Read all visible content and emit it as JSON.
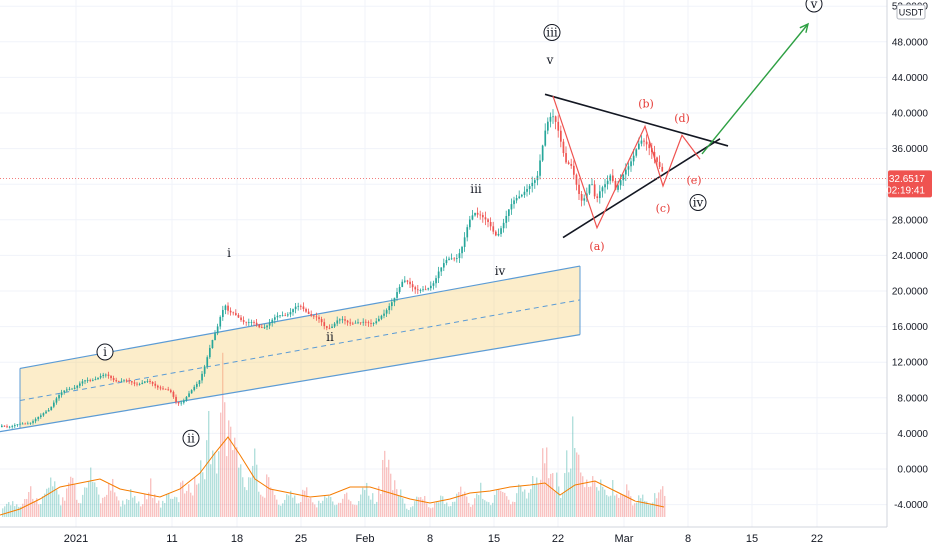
{
  "chart_data": {
    "type": "candlestick",
    "currency": "USDT",
    "y_axis_ticks": [
      "52.0000",
      "48.0000",
      "44.0000",
      "40.0000",
      "36.0000",
      "32.0000",
      "28.0000",
      "24.0000",
      "20.0000",
      "16.0000",
      "12.0000",
      "8.0000",
      "4.0000",
      "0.0000",
      "-4.0000"
    ],
    "y_tick_values": [
      52,
      48,
      44,
      40,
      36,
      32,
      28,
      24,
      20,
      16,
      12,
      8,
      4,
      0,
      -4
    ],
    "ylim": [
      -6.5,
      53
    ],
    "x_axis_ticks": [
      "2021",
      "11",
      "18",
      "25",
      "Feb",
      "8",
      "15",
      "22",
      "Mar",
      "8",
      "15",
      "22"
    ],
    "last_price": "32.6517",
    "last_price_value": 32.6517,
    "countdown": "02:19:41",
    "price_path": [
      [
        0,
        4.7
      ],
      [
        10,
        4.9
      ],
      [
        20,
        5.1
      ],
      [
        30,
        5.4
      ],
      [
        40,
        5.8
      ],
      [
        48,
        6.6
      ],
      [
        55,
        7.8
      ],
      [
        62,
        8.6
      ],
      [
        68,
        9.2
      ],
      [
        75,
        9.5
      ],
      [
        82,
        9.8
      ],
      [
        90,
        10.0
      ],
      [
        98,
        10.2
      ],
      [
        106,
        10.3
      ],
      [
        114,
        10.1
      ],
      [
        122,
        10.0
      ],
      [
        130,
        9.9
      ],
      [
        138,
        9.7
      ],
      [
        146,
        9.6
      ],
      [
        154,
        9.3
      ],
      [
        162,
        9.0
      ],
      [
        170,
        8.6
      ],
      [
        176,
        7.6
      ],
      [
        182,
        7.8
      ],
      [
        190,
        8.6
      ],
      [
        198,
        9.8
      ],
      [
        204,
        11.5
      ],
      [
        210,
        13.6
      ],
      [
        216,
        15.6
      ],
      [
        220,
        17.6
      ],
      [
        224,
        18.9
      ],
      [
        228,
        17.8
      ],
      [
        234,
        17.4
      ],
      [
        240,
        17.0
      ],
      [
        246,
        16.6
      ],
      [
        252,
        16.1
      ],
      [
        258,
        15.6
      ],
      [
        264,
        16.0
      ],
      [
        270,
        16.6
      ],
      [
        276,
        17.1
      ],
      [
        282,
        17.6
      ],
      [
        288,
        17.9
      ],
      [
        294,
        18.1
      ],
      [
        300,
        18.0
      ],
      [
        306,
        17.6
      ],
      [
        312,
        17.0
      ],
      [
        318,
        16.5
      ],
      [
        324,
        16.0
      ],
      [
        330,
        16.3
      ],
      [
        336,
        16.8
      ],
      [
        342,
        16.8
      ],
      [
        348,
        16.6
      ],
      [
        354,
        16.4
      ],
      [
        360,
        16.0
      ],
      [
        366,
        16.2
      ],
      [
        372,
        16.5
      ],
      [
        378,
        16.9
      ],
      [
        384,
        17.5
      ],
      [
        390,
        19.0
      ],
      [
        396,
        20.2
      ],
      [
        402,
        20.9
      ],
      [
        408,
        20.6
      ],
      [
        414,
        20.2
      ],
      [
        420,
        19.9
      ],
      [
        426,
        19.8
      ],
      [
        432,
        21.0
      ],
      [
        438,
        22.8
      ],
      [
        444,
        23.4
      ],
      [
        450,
        23.6
      ],
      [
        456,
        23.9
      ],
      [
        462,
        25.0
      ],
      [
        468,
        27.1
      ],
      [
        474,
        28.6
      ],
      [
        480,
        28.9
      ],
      [
        486,
        28.0
      ],
      [
        492,
        26.8
      ],
      [
        496,
        26.5
      ],
      [
        500,
        27.6
      ],
      [
        506,
        28.6
      ],
      [
        512,
        29.4
      ],
      [
        518,
        30.4
      ],
      [
        524,
        31.2
      ],
      [
        530,
        31.5
      ],
      [
        536,
        32.5
      ],
      [
        540,
        35.8
      ],
      [
        544,
        38.8
      ],
      [
        548,
        40.0
      ],
      [
        552,
        39.6
      ],
      [
        556,
        38.4
      ],
      [
        560,
        36.8
      ],
      [
        565,
        34.6
      ],
      [
        570,
        33.8
      ],
      [
        575,
        31.4
      ],
      [
        580,
        29.8
      ],
      [
        585,
        31.0
      ],
      [
        590,
        33.0
      ],
      [
        595,
        30.0
      ],
      [
        600,
        31.6
      ],
      [
        605,
        32.7
      ],
      [
        610,
        33.5
      ],
      [
        615,
        30.8
      ],
      [
        620,
        31.8
      ],
      [
        625,
        33.4
      ],
      [
        630,
        34.6
      ],
      [
        635,
        35.6
      ],
      [
        640,
        36.6
      ],
      [
        645,
        37.0
      ],
      [
        650,
        36.8
      ],
      [
        655,
        35.2
      ],
      [
        660,
        33.4
      ],
      [
        664,
        32.6
      ]
    ],
    "channel": {
      "lower": [
        [
          0,
          4.2
        ],
        [
          580,
          15.1
        ]
      ],
      "upper": [
        [
          20,
          11.3
        ],
        [
          580,
          22.8
        ]
      ],
      "mid": [
        [
          20,
          7.7
        ],
        [
          580,
          19.0
        ]
      ]
    },
    "triangle": {
      "upper": [
        [
          545,
          42.1
        ],
        [
          728,
          36.3
        ]
      ],
      "lower": [
        [
          563,
          26.0
        ],
        [
          720,
          37.1
        ]
      ]
    },
    "triangle_waves": [
      [
        553,
        41.9
      ],
      [
        597,
        27.1
      ],
      [
        645,
        38.5
      ],
      [
        663,
        31.8
      ],
      [
        682,
        37.5
      ],
      [
        700,
        34.8
      ]
    ],
    "projection": [
      [
        702,
        35.4
      ],
      [
        808,
        50.0
      ]
    ],
    "labels": [
      {
        "text": "i",
        "circled": true,
        "color": "#131722",
        "x": 105,
        "y": 12.7
      },
      {
        "text": "ii",
        "circled": true,
        "color": "#131722",
        "x": 191,
        "y": 3.0
      },
      {
        "text": "iii",
        "circled": true,
        "color": "#131722",
        "x": 552,
        "y": 48.6
      },
      {
        "text": "iv",
        "circled": true,
        "color": "#131722",
        "x": 698,
        "y": 29.5
      },
      {
        "text": "v",
        "circled": true,
        "color": "#131722",
        "x": 814,
        "y": 51.8
      },
      {
        "text": "i",
        "circled": false,
        "color": "#131722",
        "x": 229,
        "y": 23.8
      },
      {
        "text": "ii",
        "circled": false,
        "color": "#131722",
        "x": 330,
        "y": 14.4
      },
      {
        "text": "iii",
        "circled": false,
        "color": "#131722",
        "x": 476,
        "y": 31.0
      },
      {
        "text": "iv",
        "circled": false,
        "color": "#131722",
        "x": 500,
        "y": 21.8
      },
      {
        "text": "v",
        "circled": false,
        "color": "#131722",
        "x": 550,
        "y": 45.5
      },
      {
        "text": "(a)",
        "circled": false,
        "color": "#e53935",
        "x": 597,
        "y": 24.6
      },
      {
        "text": "(b)",
        "circled": false,
        "color": "#e53935",
        "x": 646,
        "y": 40.6
      },
      {
        "text": "(c)",
        "circled": false,
        "color": "#e53935",
        "x": 663,
        "y": 28.9
      },
      {
        "text": "(d)",
        "circled": false,
        "color": "#e53935",
        "x": 682,
        "y": 39.0
      },
      {
        "text": "(e)",
        "circled": false,
        "color": "#e53935",
        "x": 694,
        "y": 32.0
      }
    ],
    "volume_ma": [
      [
        0,
        0.1
      ],
      [
        20,
        0.4
      ],
      [
        40,
        0.9
      ],
      [
        60,
        1.5
      ],
      [
        80,
        1.7
      ],
      [
        100,
        1.9
      ],
      [
        120,
        1.4
      ],
      [
        140,
        1.2
      ],
      [
        160,
        1.0
      ],
      [
        180,
        1.4
      ],
      [
        200,
        2.2
      ],
      [
        215,
        3.2
      ],
      [
        228,
        4.0
      ],
      [
        240,
        3.1
      ],
      [
        255,
        1.9
      ],
      [
        270,
        1.4
      ],
      [
        290,
        1.2
      ],
      [
        310,
        1.0
      ],
      [
        330,
        1.1
      ],
      [
        350,
        1.5
      ],
      [
        370,
        1.5
      ],
      [
        390,
        1.2
      ],
      [
        410,
        0.9
      ],
      [
        430,
        0.7
      ],
      [
        450,
        0.9
      ],
      [
        470,
        1.2
      ],
      [
        490,
        1.3
      ],
      [
        510,
        1.5
      ],
      [
        530,
        1.6
      ],
      [
        545,
        1.7
      ],
      [
        560,
        1.1
      ],
      [
        575,
        1.6
      ],
      [
        595,
        1.8
      ],
      [
        615,
        1.3
      ],
      [
        635,
        0.8
      ],
      [
        655,
        0.6
      ],
      [
        664,
        0.5
      ]
    ],
    "volume_spikes": [
      [
        10,
        0.5
      ],
      [
        30,
        1.0
      ],
      [
        50,
        2.4
      ],
      [
        70,
        1.8
      ],
      [
        90,
        2.0
      ],
      [
        110,
        1.6
      ],
      [
        130,
        1.2
      ],
      [
        150,
        1.4
      ],
      [
        170,
        1.2
      ],
      [
        185,
        2.0
      ],
      [
        200,
        2.8
      ],
      [
        208,
        4.2
      ],
      [
        215,
        3.5
      ],
      [
        222,
        8.0
      ],
      [
        226,
        5.0
      ],
      [
        232,
        4.6
      ],
      [
        240,
        2.4
      ],
      [
        252,
        3.1
      ],
      [
        268,
        1.8
      ],
      [
        290,
        1.4
      ],
      [
        305,
        1.2
      ],
      [
        325,
        1.0
      ],
      [
        345,
        1.1
      ],
      [
        365,
        1.8
      ],
      [
        386,
        3.2
      ],
      [
        395,
        1.6
      ],
      [
        420,
        0.9
      ],
      [
        440,
        0.7
      ],
      [
        460,
        1.2
      ],
      [
        480,
        1.4
      ],
      [
        500,
        1.3
      ],
      [
        520,
        1.5
      ],
      [
        536,
        2.2
      ],
      [
        545,
        3.6
      ],
      [
        555,
        2.2
      ],
      [
        565,
        1.1
      ],
      [
        572,
        5.0
      ],
      [
        580,
        2.6
      ],
      [
        590,
        2.0
      ],
      [
        600,
        1.6
      ],
      [
        612,
        1.4
      ],
      [
        625,
        1.2
      ],
      [
        640,
        0.9
      ],
      [
        655,
        0.8
      ],
      [
        662,
        1.2
      ]
    ]
  }
}
